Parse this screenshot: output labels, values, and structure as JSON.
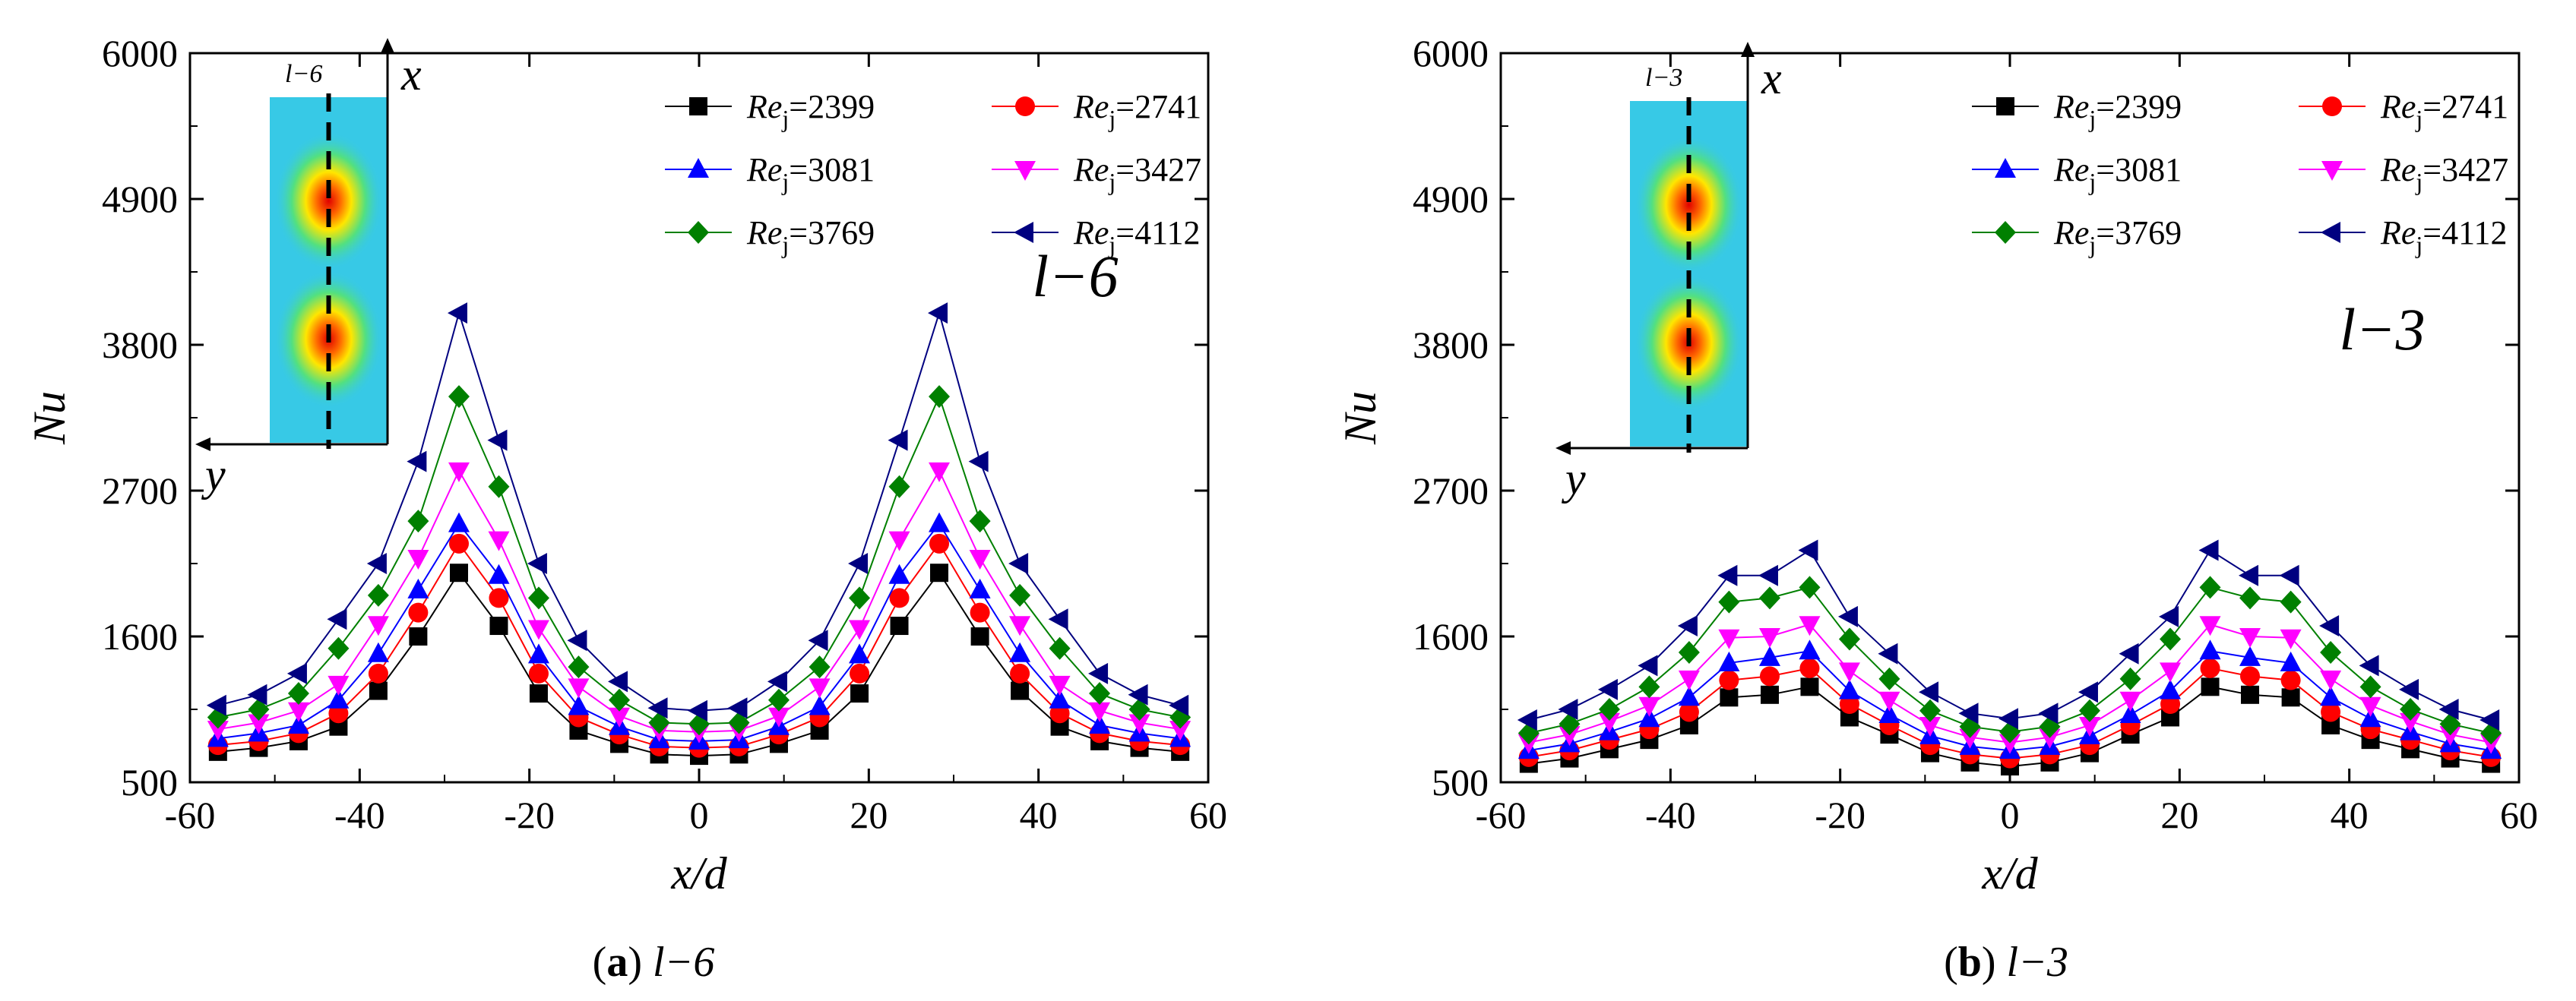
{
  "colors": {
    "2399": "#000000",
    "2741": "#ff0000",
    "3081": "#0000ff",
    "3427": "#ff00ff",
    "3769": "#008000",
    "4112": "#000080"
  },
  "chart_data": [
    {
      "type": "line",
      "caption_letter": "a",
      "caption_text": "l−6",
      "annotation": "l−6",
      "inset_label": "l−6",
      "inset_x_label": "x",
      "inset_y_label": "y",
      "xlabel": "x/d",
      "ylabel": "Nu",
      "xlim": [
        -60,
        60
      ],
      "ylim": [
        500,
        6000
      ],
      "xticks": [
        -60,
        -40,
        -20,
        0,
        20,
        40,
        60
      ],
      "yticks": [
        500,
        1600,
        2700,
        3800,
        4900,
        6000
      ],
      "x": [
        -56.7,
        -51.9,
        -47.2,
        -42.5,
        -37.8,
        -33.1,
        -28.3,
        -23.6,
        -18.9,
        -14.2,
        -9.4,
        -4.7,
        0,
        4.7,
        9.4,
        14.2,
        18.9,
        23.6,
        28.3,
        33.1,
        37.8,
        42.5,
        47.2,
        51.9,
        56.7
      ],
      "series": [
        {
          "re_prefix": "Re",
          "re_sub": "j",
          "re_value": "2399",
          "marker": "square",
          "color_key": "2399",
          "values": [
            730,
            760,
            810,
            920,
            1190,
            1600,
            2080,
            1680,
            1170,
            890,
            790,
            710,
            700,
            710,
            790,
            890,
            1170,
            1680,
            2080,
            1600,
            1190,
            920,
            810,
            760,
            730
          ]
        },
        {
          "re_prefix": "Re",
          "re_sub": "j",
          "re_value": "2741",
          "marker": "circle",
          "color_key": "2741",
          "values": [
            780,
            810,
            870,
            1020,
            1320,
            1780,
            2300,
            1890,
            1320,
            990,
            860,
            770,
            760,
            770,
            860,
            990,
            1320,
            1890,
            2300,
            1780,
            1320,
            1020,
            870,
            810,
            780
          ]
        },
        {
          "re_prefix": "Re",
          "re_sub": "j",
          "re_value": "3081",
          "marker": "triangle-up",
          "color_key": "3081",
          "values": [
            830,
            870,
            930,
            1120,
            1470,
            1950,
            2450,
            2060,
            1460,
            1070,
            920,
            820,
            810,
            820,
            920,
            1070,
            1460,
            2060,
            2450,
            1950,
            1470,
            1120,
            930,
            870,
            830
          ]
        },
        {
          "re_prefix": "Re",
          "re_sub": "j",
          "re_value": "3427",
          "marker": "triangle-down",
          "color_key": "3427",
          "values": [
            900,
            950,
            1040,
            1240,
            1690,
            2190,
            2850,
            2330,
            1660,
            1220,
            1000,
            890,
            880,
            890,
            1000,
            1220,
            1660,
            2330,
            2850,
            2190,
            1690,
            1240,
            1040,
            950,
            900
          ]
        },
        {
          "re_prefix": "Re",
          "re_sub": "j",
          "re_value": "3769",
          "marker": "diamond",
          "color_key": "3769",
          "values": [
            990,
            1050,
            1170,
            1510,
            1910,
            2470,
            3410,
            2730,
            1890,
            1370,
            1120,
            950,
            940,
            950,
            1120,
            1370,
            1890,
            2730,
            3410,
            2470,
            1910,
            1510,
            1170,
            1050,
            990
          ]
        },
        {
          "re_prefix": "Re",
          "re_sub": "j",
          "re_value": "4112",
          "marker": "triangle-left",
          "color_key": "4112",
          "values": [
            1080,
            1160,
            1320,
            1730,
            2150,
            2920,
            4040,
            3080,
            2150,
            1570,
            1260,
            1060,
            1040,
            1060,
            1260,
            1570,
            2150,
            3080,
            4040,
            2920,
            2150,
            1730,
            1320,
            1160,
            1080
          ]
        }
      ]
    },
    {
      "type": "line",
      "caption_letter": "b",
      "caption_text": "l−3",
      "annotation": "l−3",
      "inset_label": "l−3",
      "inset_x_label": "x",
      "inset_y_label": "y",
      "xlabel": "x/d",
      "ylabel": "Nu",
      "xlim": [
        -60,
        60
      ],
      "ylim": [
        500,
        6000
      ],
      "xticks": [
        -60,
        -40,
        -20,
        0,
        20,
        40,
        60
      ],
      "yticks": [
        500,
        1600,
        2700,
        3800,
        4900,
        6000
      ],
      "x": [
        -56.7,
        -51.9,
        -47.2,
        -42.5,
        -37.8,
        -33.1,
        -28.3,
        -23.6,
        -18.9,
        -14.2,
        -9.4,
        -4.7,
        0,
        4.7,
        9.4,
        14.2,
        18.9,
        23.6,
        28.3,
        33.1,
        37.8,
        42.5,
        47.2,
        51.9,
        56.7
      ],
      "series": [
        {
          "re_prefix": "Re",
          "re_sub": "j",
          "re_value": "2399",
          "marker": "square",
          "color_key": "2399",
          "values": [
            640,
            680,
            750,
            820,
            930,
            1140,
            1160,
            1220,
            990,
            860,
            720,
            650,
            620,
            650,
            720,
            860,
            990,
            1220,
            1160,
            1140,
            930,
            820,
            750,
            680,
            640
          ]
        },
        {
          "re_prefix": "Re",
          "re_sub": "j",
          "re_value": "2741",
          "marker": "circle",
          "color_key": "2741",
          "values": [
            690,
            740,
            820,
            900,
            1030,
            1270,
            1300,
            1360,
            1090,
            930,
            780,
            710,
            680,
            710,
            780,
            930,
            1090,
            1360,
            1300,
            1270,
            1030,
            900,
            820,
            740,
            690
          ]
        },
        {
          "re_prefix": "Re",
          "re_sub": "j",
          "re_value": "3081",
          "marker": "triangle-up",
          "color_key": "3081",
          "values": [
            740,
            790,
            880,
            980,
            1140,
            1400,
            1440,
            1490,
            1190,
            1010,
            850,
            770,
            740,
            770,
            850,
            1010,
            1190,
            1490,
            1440,
            1400,
            1140,
            980,
            880,
            790,
            740
          ]
        },
        {
          "re_prefix": "Re",
          "re_sub": "j",
          "re_value": "3427",
          "marker": "triangle-down",
          "color_key": "3427",
          "values": [
            800,
            860,
            960,
            1080,
            1280,
            1590,
            1600,
            1690,
            1340,
            1120,
            930,
            840,
            800,
            840,
            930,
            1120,
            1340,
            1690,
            1600,
            1590,
            1280,
            1080,
            960,
            860,
            800
          ]
        },
        {
          "re_prefix": "Re",
          "re_sub": "j",
          "re_value": "3769",
          "marker": "diamond",
          "color_key": "3769",
          "values": [
            870,
            940,
            1050,
            1220,
            1480,
            1860,
            1890,
            1970,
            1580,
            1280,
            1040,
            920,
            880,
            920,
            1040,
            1280,
            1580,
            1970,
            1890,
            1860,
            1480,
            1220,
            1050,
            940,
            870
          ]
        },
        {
          "re_prefix": "Re",
          "re_sub": "j",
          "re_value": "4112",
          "marker": "triangle-left",
          "color_key": "4112",
          "values": [
            970,
            1050,
            1200,
            1380,
            1680,
            2060,
            2060,
            2250,
            1750,
            1470,
            1180,
            1020,
            980,
            1020,
            1180,
            1470,
            1750,
            2250,
            2060,
            2060,
            1680,
            1380,
            1200,
            1050,
            970
          ]
        }
      ]
    }
  ]
}
